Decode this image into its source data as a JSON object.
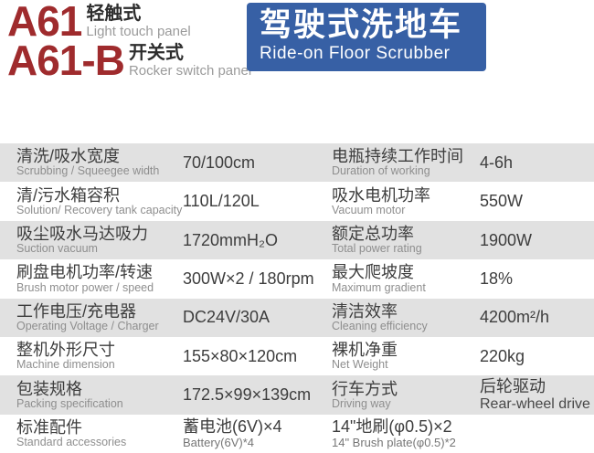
{
  "header": {
    "models": [
      {
        "code": "A61",
        "panel_cn": "轻触式",
        "panel_en": "Light touch panel"
      },
      {
        "code": "A61-B",
        "panel_cn": "开关式",
        "panel_en": "Rocker switch panel"
      }
    ],
    "product": {
      "title_cn": "驾驶式洗地车",
      "title_en": "Ride-on Floor Scrubber"
    }
  },
  "colors": {
    "accent_red": "#9f2b2d",
    "brand_blue": "#3760a5",
    "row_gray": "#e1e1e1"
  },
  "spec_table": {
    "rows": [
      {
        "left": {
          "label_cn": "清洗/吸水宽度",
          "label_en": "Scrubbing / Squeegee width",
          "value": "70/100cm"
        },
        "right": {
          "label_cn": "电瓶持续工作时间",
          "label_en": "Duration of working",
          "value": "4-6h"
        }
      },
      {
        "left": {
          "label_cn": "清/污水箱容积",
          "label_en": "Solution/ Recovery tank capacity",
          "value": "110L/120L"
        },
        "right": {
          "label_cn": "吸水电机功率",
          "label_en": "Vacuum motor",
          "value": "550W"
        }
      },
      {
        "left": {
          "label_cn": "吸尘吸水马达吸力",
          "label_en": "Suction vacuum",
          "value": "1720mmH₂O"
        },
        "right": {
          "label_cn": "额定总功率",
          "label_en": "Total power rating",
          "value": "1900W"
        }
      },
      {
        "left": {
          "label_cn": "刷盘电机功率/转速",
          "label_en": "Brush motor power / speed",
          "value": "300W×2 / 180rpm"
        },
        "right": {
          "label_cn": "最大爬坡度",
          "label_en": "Maximum gradient",
          "value": "18%"
        }
      },
      {
        "left": {
          "label_cn": "工作电压/充电器",
          "label_en": "Operating Voltage / Charger",
          "value": "DC24V/30A"
        },
        "right": {
          "label_cn": "清洁效率",
          "label_en": "Cleaning efficiency",
          "value": "4200m²/h"
        }
      },
      {
        "left": {
          "label_cn": "整机外形尺寸",
          "label_en": "Machine dimension",
          "value": "155×80×120cm"
        },
        "right": {
          "label_cn": "裸机净重",
          "label_en": "Net Weight",
          "value": "220kg"
        }
      },
      {
        "left": {
          "label_cn": "包装规格",
          "label_en": "Packing specification",
          "value": "172.5×99×139cm"
        },
        "right": {
          "label_cn": "行车方式",
          "label_en": "Driving way",
          "value": "后轮驱动",
          "value_sub": "Rear-wheel drive"
        }
      },
      {
        "left": {
          "label_cn": "标准配件",
          "label_en": "Standard accessories",
          "value": "蓄电池(6V)×4",
          "value_sub": "Battery(6V)*4"
        },
        "right": {
          "value": "14\"地刷(φ0.5)×2",
          "value_sub": "14\" Brush plate(φ0.5)*2"
        }
      }
    ]
  }
}
